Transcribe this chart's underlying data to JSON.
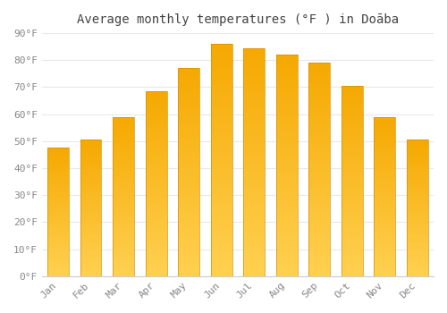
{
  "title": "Average monthly temperatures (°F ) in Doāba",
  "months": [
    "Jan",
    "Feb",
    "Mar",
    "Apr",
    "May",
    "Jun",
    "Jul",
    "Aug",
    "Sep",
    "Oct",
    "Nov",
    "Dec"
  ],
  "values": [
    47.5,
    50.5,
    59,
    68.5,
    77,
    86,
    84.5,
    82,
    79,
    70.5,
    59,
    50.5
  ],
  "bar_color_dark": "#F5A800",
  "bar_color_light": "#FFD050",
  "ylim": [
    0,
    90
  ],
  "yticks": [
    0,
    10,
    20,
    30,
    40,
    50,
    60,
    70,
    80,
    90
  ],
  "ytick_labels": [
    "0°F",
    "10°F",
    "20°F",
    "30°F",
    "40°F",
    "50°F",
    "60°F",
    "70°F",
    "80°F",
    "90°F"
  ],
  "background_color": "#FFFFFF",
  "grid_color": "#E8E8E8",
  "title_fontsize": 10,
  "tick_fontsize": 8,
  "bar_edge_color": "#D4900A"
}
